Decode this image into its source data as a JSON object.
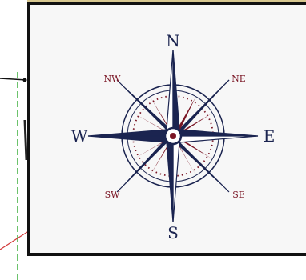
{
  "compass": {
    "labels": {
      "n": "N",
      "e": "E",
      "s": "S",
      "w": "W",
      "ne": "NE",
      "nw": "NW",
      "se": "SE",
      "sw": "SW"
    }
  },
  "colors": {
    "navy": "#1b2450",
    "maroon": "#7a1524",
    "guide_green": "#3cae3c",
    "guide_red": "#d23a3a",
    "frame": "#111111"
  }
}
